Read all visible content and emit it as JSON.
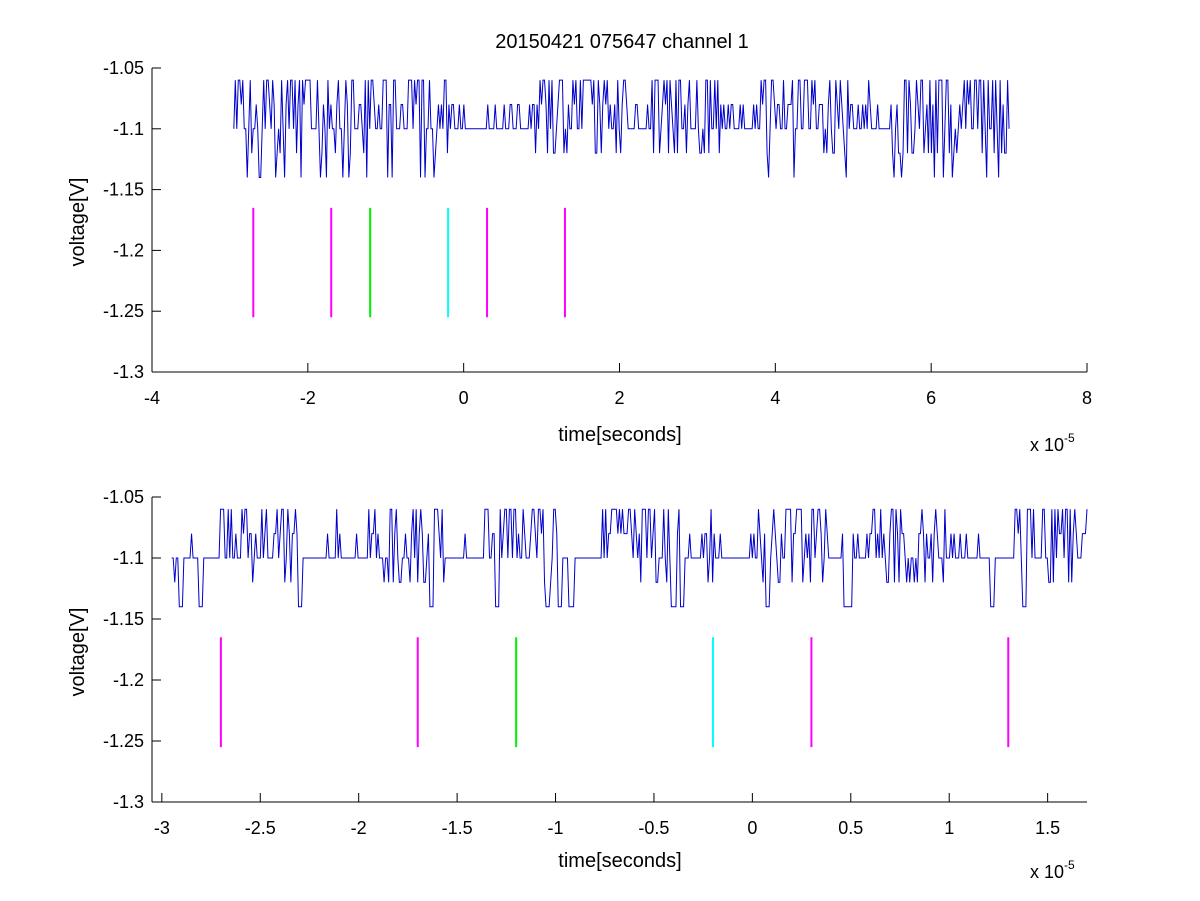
{
  "figure_title": "20150421 075647 channel 1",
  "colors": {
    "trace": "#0000cc",
    "magenta": "#ff00ff",
    "green": "#00ee00",
    "cyan": "#00ffff",
    "axis": "#000000",
    "background": "#ffffff"
  },
  "chart_data": [
    {
      "type": "line",
      "name": "full-record",
      "title": "20150421 075647 channel 1",
      "xlabel": "time[seconds]",
      "ylabel": "voltage[V]",
      "x_multiplier_base": "x 10",
      "x_multiplier_exponent": "-5",
      "xlim": [
        -4,
        8
      ],
      "ylim": [
        -1.3,
        -1.05
      ],
      "xticks": [
        -4,
        -2,
        0,
        2,
        4,
        6,
        8
      ],
      "xtick_labels": [
        "-4",
        "-2",
        "0",
        "2",
        "4",
        "6",
        "8"
      ],
      "yticks": [
        -1.3,
        -1.25,
        -1.2,
        -1.15,
        -1.1,
        -1.05
      ],
      "ytick_labels": [
        "-1.3",
        "-1.25",
        "-1.2",
        "-1.15",
        "-1.1",
        "-1.05"
      ],
      "grid": false,
      "trace": {
        "x_range": [
          -2.95,
          7.0
        ],
        "baseline": -1.1,
        "levels": [
          -1.14,
          -1.12,
          -1.1,
          -1.08,
          -1.06
        ],
        "dense_low_regions": [
          [
            -2.9,
            -0.3
          ],
          [
            3.8,
            6.9
          ]
        ]
      },
      "markers": [
        {
          "x": -2.7,
          "color": "magenta",
          "y": [
            -1.255,
            -1.165
          ]
        },
        {
          "x": -1.7,
          "color": "magenta",
          "y": [
            -1.255,
            -1.165
          ]
        },
        {
          "x": -1.2,
          "color": "green",
          "y": [
            -1.255,
            -1.165
          ]
        },
        {
          "x": -0.2,
          "color": "cyan",
          "y": [
            -1.255,
            -1.165
          ]
        },
        {
          "x": 0.3,
          "color": "magenta",
          "y": [
            -1.255,
            -1.165
          ]
        },
        {
          "x": 1.3,
          "color": "magenta",
          "y": [
            -1.255,
            -1.165
          ]
        }
      ]
    },
    {
      "type": "line",
      "name": "zoomed-record",
      "title": "",
      "xlabel": "time[seconds]",
      "ylabel": "voltage[V]",
      "x_multiplier_base": "x 10",
      "x_multiplier_exponent": "-5",
      "xlim": [
        -3.05,
        1.7
      ],
      "ylim": [
        -1.3,
        -1.05
      ],
      "xticks": [
        -3,
        -2.5,
        -2,
        -1.5,
        -1,
        -0.5,
        0,
        0.5,
        1,
        1.5
      ],
      "xtick_labels": [
        "-3",
        "-2.5",
        "-2",
        "-1.5",
        "-1",
        "-0.5",
        "0",
        "0.5",
        "1",
        "1.5"
      ],
      "yticks": [
        -1.3,
        -1.25,
        -1.2,
        -1.15,
        -1.1,
        -1.05
      ],
      "ytick_labels": [
        "-1.3",
        "-1.25",
        "-1.2",
        "-1.15",
        "-1.1",
        "-1.05"
      ],
      "grid": false,
      "trace": {
        "x_range": [
          -2.95,
          1.7
        ],
        "baseline": -1.1,
        "levels": [
          -1.14,
          -1.12,
          -1.1,
          -1.08,
          -1.06
        ],
        "dips_to_min": [
          -2.9,
          -2.8,
          -2.3,
          -1.63,
          -1.3,
          -1.04,
          -0.98,
          -0.92,
          -0.4,
          -0.36,
          0.08,
          0.47,
          0.5,
          1.22,
          1.38
        ]
      },
      "markers": [
        {
          "x": -2.7,
          "color": "magenta",
          "y": [
            -1.255,
            -1.165
          ]
        },
        {
          "x": -1.7,
          "color": "magenta",
          "y": [
            -1.255,
            -1.165
          ]
        },
        {
          "x": -1.2,
          "color": "green",
          "y": [
            -1.255,
            -1.165
          ]
        },
        {
          "x": -0.2,
          "color": "cyan",
          "y": [
            -1.255,
            -1.165
          ]
        },
        {
          "x": 0.3,
          "color": "magenta",
          "y": [
            -1.255,
            -1.165
          ]
        },
        {
          "x": 1.3,
          "color": "magenta",
          "y": [
            -1.255,
            -1.165
          ]
        }
      ]
    }
  ]
}
